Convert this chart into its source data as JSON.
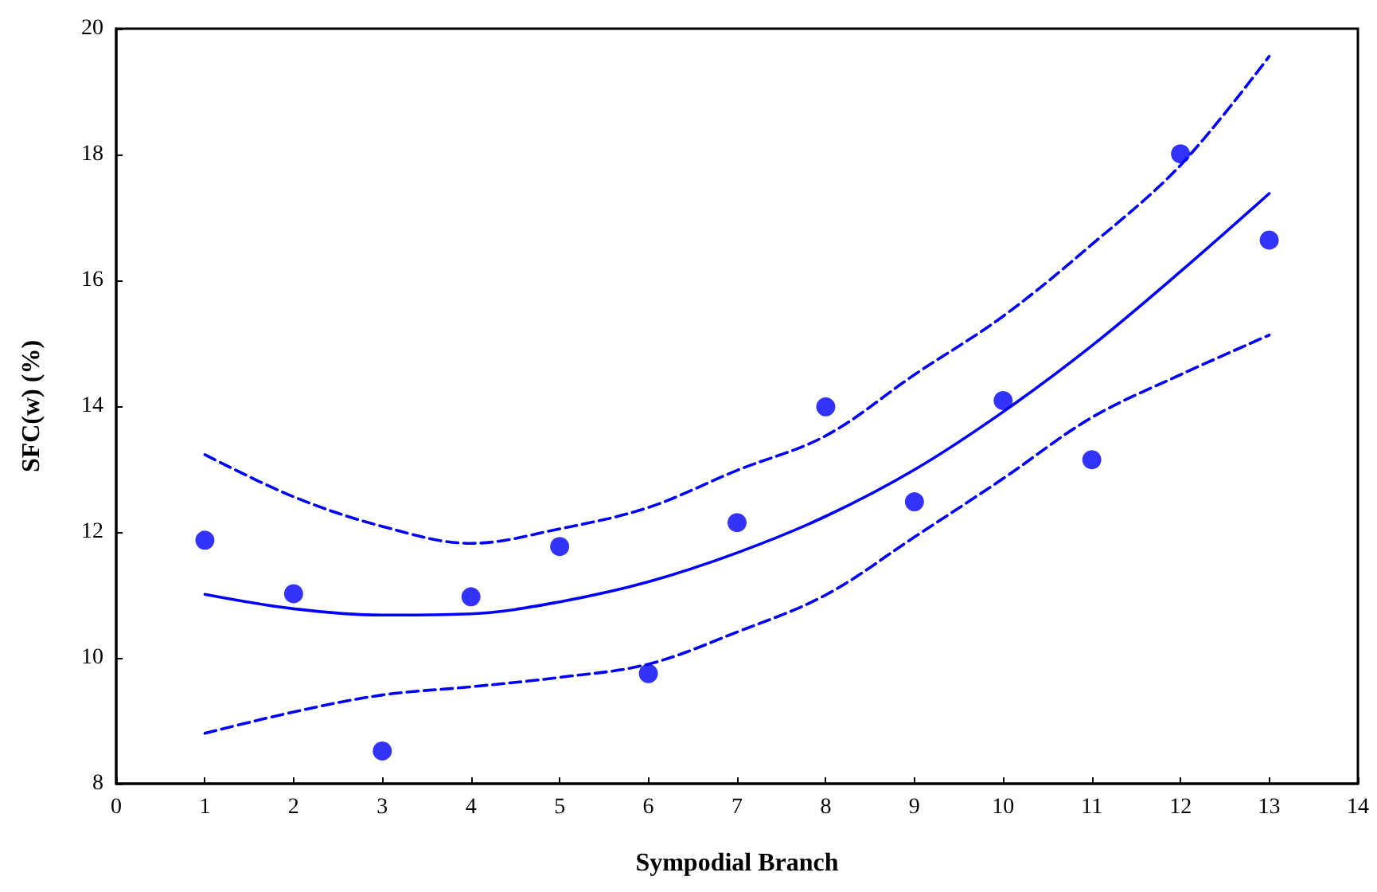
{
  "chart_data": {
    "type": "scatter",
    "xlabel": "Sympodial Branch",
    "ylabel": "SFC(w) (%)",
    "xlim": [
      0,
      14
    ],
    "xticks": [
      0,
      1,
      2,
      3,
      4,
      5,
      6,
      7,
      8,
      9,
      10,
      11,
      12,
      13,
      14
    ],
    "ylim": [
      8,
      20
    ],
    "yticks": [
      8,
      10,
      12,
      14,
      16,
      18,
      20
    ],
    "grid": false,
    "series": [
      {
        "marker": "circle",
        "color": "#0000ff",
        "x": [
          1,
          2,
          3,
          4,
          5,
          6,
          7,
          8,
          9,
          10,
          11,
          12,
          13
        ],
        "values": [
          11.87,
          11.02,
          8.52,
          10.97,
          11.77,
          9.75,
          12.15,
          13.99,
          12.48,
          14.09,
          13.15,
          18.01,
          16.64
        ]
      },
      {
        "type": "line",
        "marker": "none",
        "line_style": "solid",
        "color": "#0000ff",
        "x": [
          1,
          2,
          3,
          4,
          5,
          6,
          7,
          8,
          9,
          10,
          11,
          12,
          13
        ],
        "values": [
          11.01,
          10.78,
          10.68,
          10.7,
          10.89,
          11.21,
          11.67,
          12.25,
          12.99,
          13.91,
          14.96,
          16.14,
          17.38
        ]
      },
      {
        "type": "line",
        "marker": "none",
        "line_style": "dashed",
        "color": "#0000ff",
        "x": [
          1,
          2,
          3,
          4,
          5,
          6,
          7,
          8,
          9,
          10,
          11,
          12,
          13
        ],
        "values": [
          13.23,
          12.56,
          12.09,
          11.82,
          12.05,
          12.39,
          12.98,
          13.53,
          14.5,
          15.43,
          16.57,
          17.83,
          19.56
        ]
      },
      {
        "type": "line",
        "marker": "none",
        "line_style": "dashed",
        "color": "#0000ff",
        "x": [
          1,
          2,
          3,
          4,
          5,
          6,
          7,
          8,
          9,
          10,
          11,
          12,
          13
        ],
        "values": [
          8.8,
          9.14,
          9.41,
          9.54,
          9.69,
          9.9,
          10.41,
          11.0,
          11.92,
          12.85,
          13.82,
          14.5,
          15.13
        ]
      }
    ]
  }
}
